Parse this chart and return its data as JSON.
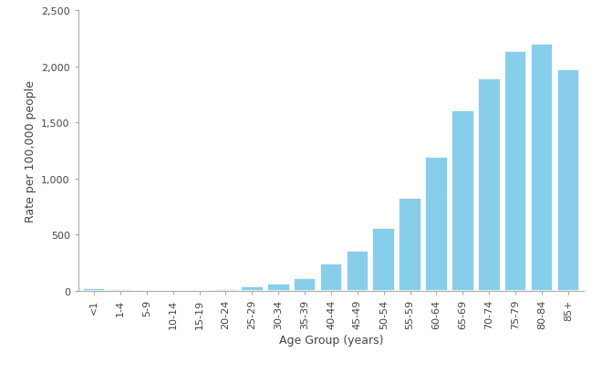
{
  "categories": [
    "<1",
    "1-4",
    "5-9",
    "10-14",
    "15-19",
    "20-24",
    "25-29",
    "30-34",
    "35-39",
    "40-44",
    "45-49",
    "50-54",
    "55-59",
    "60-64",
    "65-69",
    "70-74",
    "75-79",
    "80-84",
    "85+"
  ],
  "values": [
    25,
    15,
    8,
    8,
    10,
    12,
    35,
    65,
    110,
    240,
    360,
    560,
    830,
    1190,
    1610,
    1890,
    2140,
    2200,
    1970
  ],
  "bar_color": "#87CEEB",
  "bar_edge_color": "white",
  "xlabel": "Age Group (years)",
  "ylabel": "Rate per 100,000 people",
  "ylim": [
    0,
    2500
  ],
  "yticks": [
    0,
    500,
    1000,
    1500,
    2000,
    2500
  ],
  "ytick_labels": [
    "0",
    "500",
    "1,000",
    "1,500",
    "2,000",
    "2,500"
  ],
  "background_color": "white",
  "label_fontsize": 9,
  "tick_fontsize": 8,
  "spine_color": "#aaaaaa",
  "bar_linewidth": 1.2
}
